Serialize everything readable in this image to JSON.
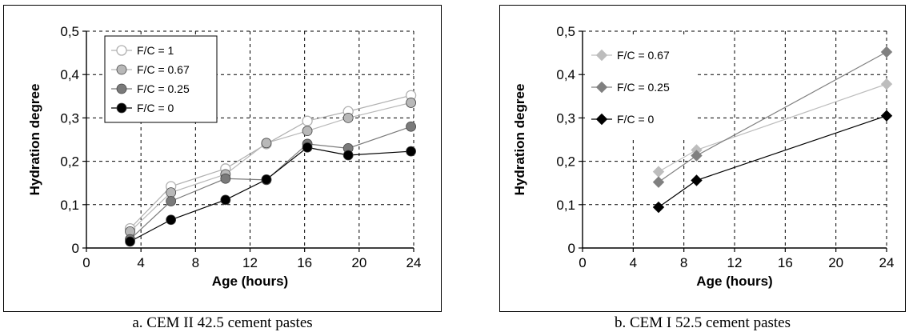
{
  "captions": {
    "a": "a. CEM II 42.5 cement pastes",
    "b": "b. CEM I 52.5 cement pastes"
  },
  "chart_data": [
    {
      "type": "line",
      "xlabel": "Age (hours)",
      "ylabel": "Hydration degree",
      "xlim": [
        0,
        24
      ],
      "ylim": [
        0,
        0.5
      ],
      "xticks": [
        0,
        4,
        8,
        12,
        16,
        20,
        24
      ],
      "yticks": [
        0,
        0.1,
        0.2,
        0.3,
        0.4,
        0.5
      ],
      "xtick_labels": [
        "0",
        "4",
        "8",
        "12",
        "16",
        "20",
        "24"
      ],
      "ytick_labels": [
        "0",
        "0,1",
        "0,2",
        "0,3",
        "0,4",
        "0,5"
      ],
      "grid": "dashed",
      "legend_position": "top-left",
      "series": [
        {
          "name": "F/C = 1",
          "marker": "circle-open",
          "color": "#b0b0b0",
          "x": [
            3.2,
            6.2,
            10.2,
            13.2,
            16.2,
            19.2,
            23.8
          ],
          "y": [
            0.045,
            0.142,
            0.183,
            0.24,
            0.293,
            0.315,
            0.352
          ]
        },
        {
          "name": "F/C = 0.67",
          "marker": "circle",
          "color": "#b8b8b8",
          "x": [
            3.2,
            6.2,
            10.2,
            13.2,
            16.2,
            19.2,
            23.8
          ],
          "y": [
            0.038,
            0.128,
            0.17,
            0.242,
            0.27,
            0.3,
            0.335
          ]
        },
        {
          "name": "F/C = 0.25",
          "marker": "circle",
          "color": "#7a7a7a",
          "x": [
            3.2,
            6.2,
            10.2,
            13.2,
            16.2,
            19.2,
            23.8
          ],
          "y": [
            0.02,
            0.108,
            0.16,
            0.157,
            0.24,
            0.23,
            0.28
          ]
        },
        {
          "name": "F/C = 0",
          "marker": "circle",
          "color": "#000000",
          "x": [
            3.2,
            6.2,
            10.2,
            13.2,
            16.2,
            19.2,
            23.8
          ],
          "y": [
            0.015,
            0.065,
            0.111,
            0.158,
            0.232,
            0.214,
            0.223
          ]
        }
      ]
    },
    {
      "type": "line",
      "xlabel": "Age (hours)",
      "ylabel": "Hydration degree",
      "xlim": [
        0,
        24
      ],
      "ylim": [
        0,
        0.5
      ],
      "xticks": [
        0,
        4,
        8,
        12,
        16,
        20,
        24
      ],
      "yticks": [
        0,
        0.1,
        0.2,
        0.3,
        0.4,
        0.5
      ],
      "xtick_labels": [
        "0",
        "4",
        "8",
        "12",
        "16",
        "20",
        "24"
      ],
      "ytick_labels": [
        "0",
        "0,1",
        "0,2",
        "0,3",
        "0,4",
        "0,5"
      ],
      "grid": "dashed",
      "legend_position": "top-left",
      "series": [
        {
          "name": "F/C = 0.67",
          "marker": "diamond",
          "color": "#bdbdbd",
          "x": [
            6,
            9,
            24
          ],
          "y": [
            0.176,
            0.226,
            0.378
          ]
        },
        {
          "name": "F/C = 0.25",
          "marker": "diamond",
          "color": "#808080",
          "x": [
            6,
            9,
            24
          ],
          "y": [
            0.152,
            0.213,
            0.452
          ]
        },
        {
          "name": "F/C = 0",
          "marker": "diamond",
          "color": "#000000",
          "x": [
            6,
            9,
            24
          ],
          "y": [
            0.094,
            0.156,
            0.305
          ]
        }
      ]
    }
  ]
}
